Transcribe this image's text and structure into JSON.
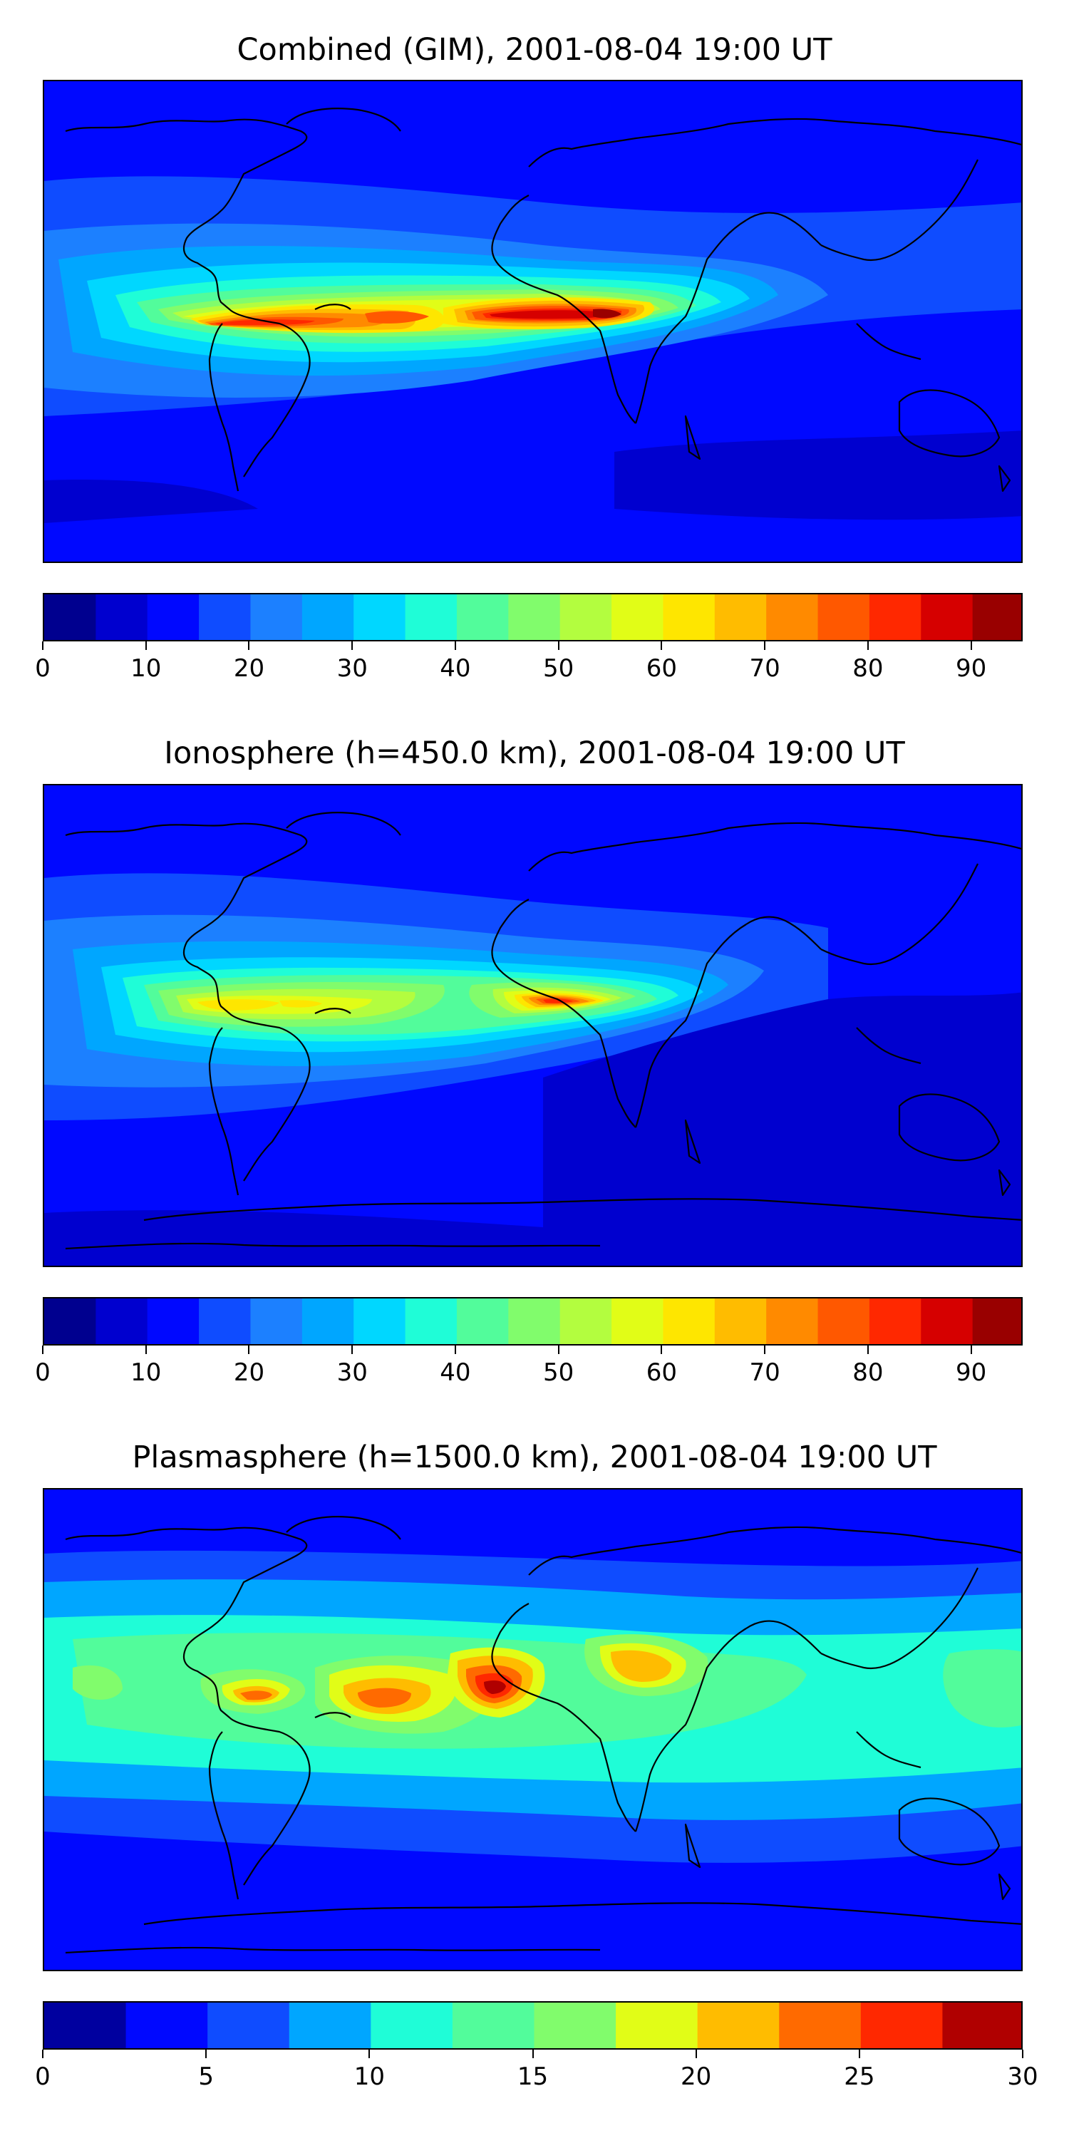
{
  "maps": [
    {
      "id": "combined",
      "title": "Combined (GIM), 2001-08-04 19:00 UT",
      "colorbar": {
        "min": 0,
        "max": 95,
        "step": 5,
        "tick_values": [
          0,
          10,
          20,
          30,
          40,
          50,
          60,
          70,
          80,
          90
        ],
        "tick_labels": [
          "0",
          "10",
          "20",
          "30",
          "40",
          "50",
          "60",
          "70",
          "80",
          "90"
        ]
      },
      "colors": [
        "#00008f",
        "#0000cf",
        "#0008ff",
        "#0f4cff",
        "#1c80ff",
        "#00a6ff",
        "#00d7ff",
        "#1ffdd7",
        "#52fc9b",
        "#81fc6c",
        "#b3fd3f",
        "#e1fd17",
        "#fee600",
        "#ffbc00",
        "#ff8a00",
        "#ff5800",
        "#ff2800",
        "#d60000",
        "#990000"
      ]
    },
    {
      "id": "ionosphere",
      "title": "Ionosphere  (h=450.0 km), 2001-08-04 19:00 UT",
      "colorbar": {
        "min": 0,
        "max": 95,
        "step": 5,
        "tick_values": [
          0,
          10,
          20,
          30,
          40,
          50,
          60,
          70,
          80,
          90
        ],
        "tick_labels": [
          "0",
          "10",
          "20",
          "30",
          "40",
          "50",
          "60",
          "70",
          "80",
          "90"
        ]
      },
      "colors": [
        "#00008f",
        "#0000cf",
        "#0008ff",
        "#0f4cff",
        "#1c80ff",
        "#00a6ff",
        "#00d7ff",
        "#1ffdd7",
        "#52fc9b",
        "#81fc6c",
        "#b3fd3f",
        "#e1fd17",
        "#fee600",
        "#ffbc00",
        "#ff8a00",
        "#ff5800",
        "#ff2800",
        "#d60000",
        "#990000"
      ]
    },
    {
      "id": "plasmasphere",
      "title": "Plasmasphere (h=1500.0 km), 2001-08-04 19:00 UT",
      "colorbar": {
        "min": 0,
        "max": 30,
        "step": 2.5,
        "tick_values": [
          0,
          5,
          10,
          15,
          20,
          25,
          30
        ],
        "tick_labels": [
          "0",
          "5",
          "10",
          "15",
          "20",
          "25",
          "30"
        ]
      },
      "colors": [
        "#00009f",
        "#0008ff",
        "#0f4cff",
        "#00a6ff",
        "#1ffdd7",
        "#52fc9b",
        "#81fc6c",
        "#e1fd17",
        "#ffbc00",
        "#ff6a00",
        "#ff2800",
        "#b00000"
      ]
    }
  ]
}
